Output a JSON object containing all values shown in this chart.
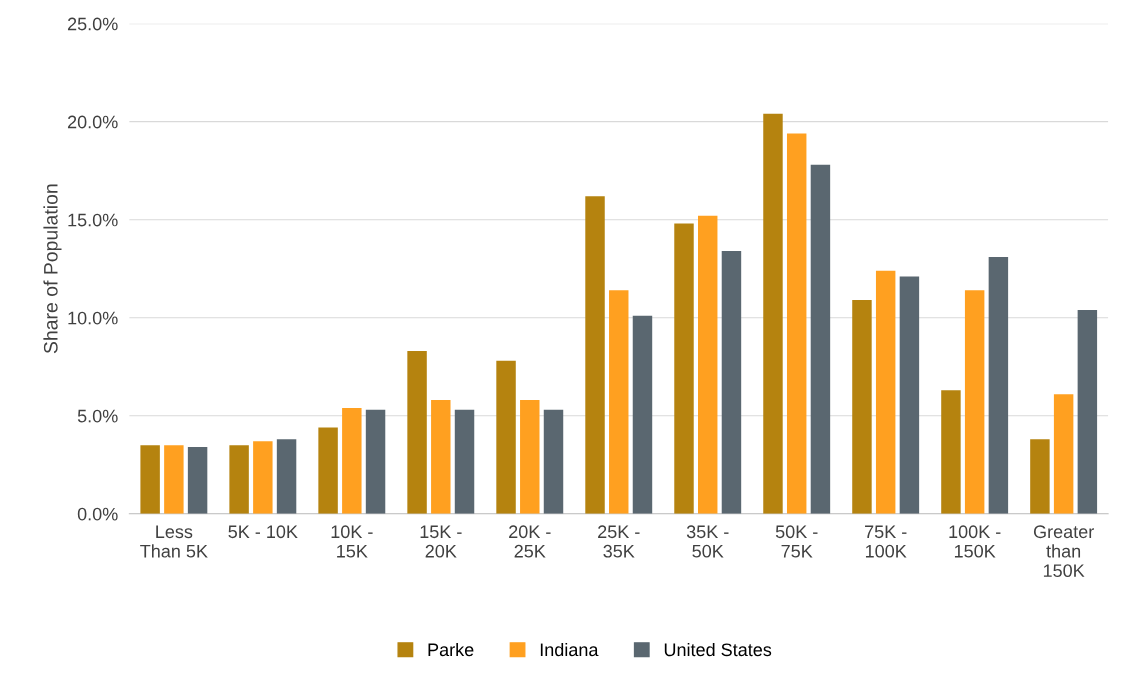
{
  "chart_data": {
    "type": "bar",
    "ylabel": "Share of Population",
    "categories": [
      "Less\nThan 5K",
      "5K - 10K",
      "10K -\n15K",
      "15K -\n20K",
      "20K -\n25K",
      "25K -\n35K",
      "35K -\n50K",
      "50K -\n75K",
      "75K -\n100K",
      "100K -\n150K",
      "Greater\nthan\n150K"
    ],
    "series": [
      {
        "name": "Parke",
        "color": "#b5830f",
        "values": [
          3.5,
          3.5,
          4.4,
          8.3,
          7.8,
          16.2,
          14.8,
          20.4,
          10.9,
          6.3,
          3.8
        ]
      },
      {
        "name": "Indiana",
        "color": "#ffa020",
        "values": [
          3.5,
          3.7,
          5.4,
          5.8,
          5.8,
          11.4,
          15.2,
          19.4,
          12.4,
          11.4,
          6.1
        ]
      },
      {
        "name": "United States",
        "color": "#5a6770",
        "values": [
          3.4,
          3.8,
          5.3,
          5.3,
          5.3,
          10.1,
          13.4,
          17.8,
          12.1,
          13.1,
          10.4
        ]
      }
    ],
    "ylim": [
      0,
      25
    ],
    "yticks": [
      {
        "value": 0,
        "label": "0.0%"
      },
      {
        "value": 5,
        "label": "5.0%"
      },
      {
        "value": 10,
        "label": "10.0%"
      },
      {
        "value": 15,
        "label": "15.0%"
      },
      {
        "value": 20,
        "label": "20.0%"
      },
      {
        "value": 25,
        "label": "25.0%"
      }
    ],
    "grid": "y",
    "legend": "bottom"
  }
}
